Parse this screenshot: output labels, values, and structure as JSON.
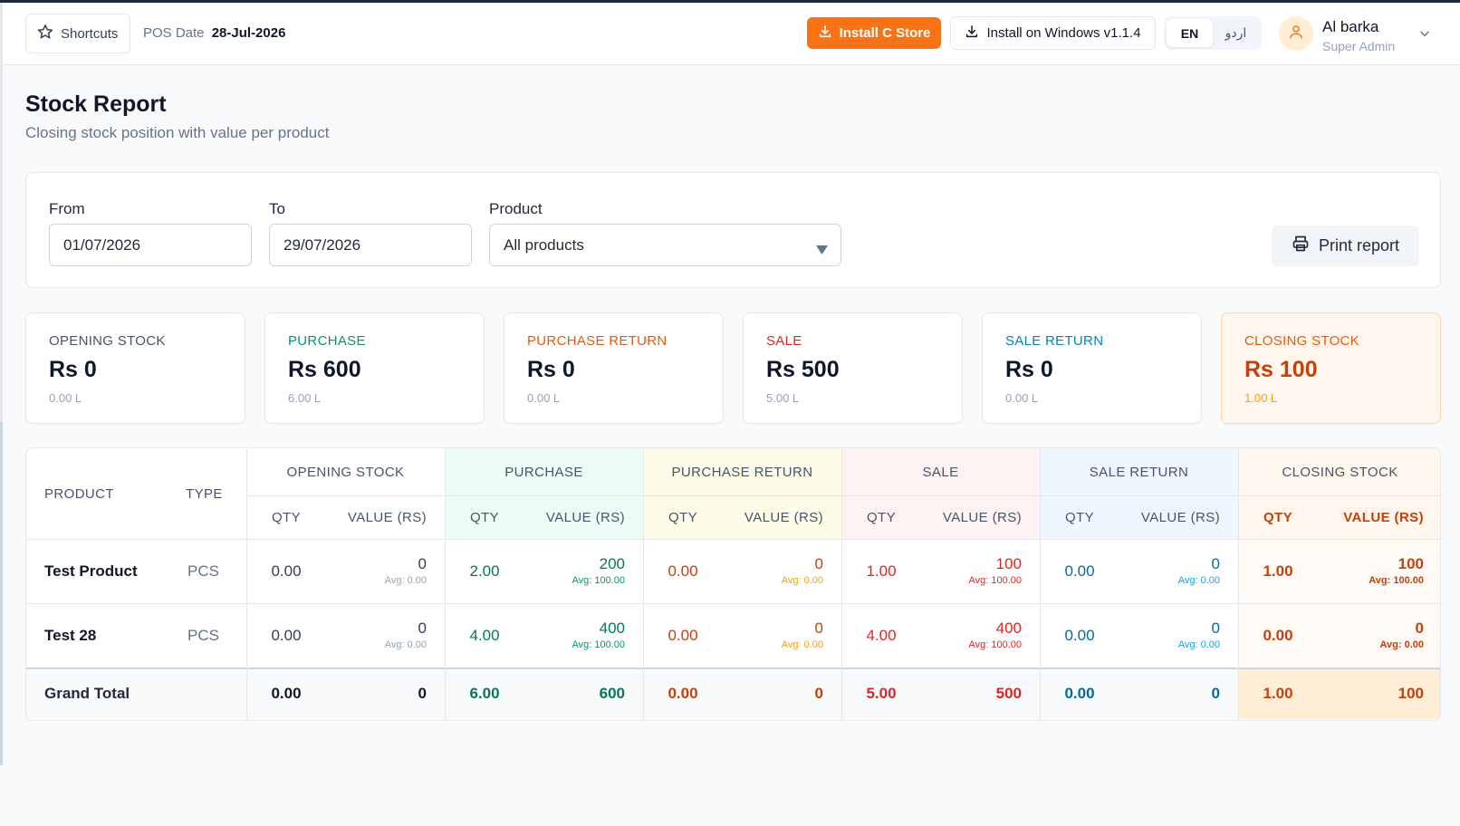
{
  "header": {
    "shortcuts_label": "Shortcuts",
    "pos_date_label": "POS Date",
    "pos_date_value": "28-Jul-2026",
    "install_store_label": "Install C Store",
    "install_windows_label": "Install on Windows v1.1.4",
    "languages": [
      "EN",
      "اردو"
    ],
    "active_language": "EN",
    "user": {
      "name": "Al barka",
      "role": "Super Admin"
    }
  },
  "page": {
    "title": "Stock Report",
    "subtitle": "Closing stock position with value per product"
  },
  "filters": {
    "from_label": "From",
    "from_value": "01/07/2026",
    "to_label": "To",
    "to_value": "29/07/2026",
    "product_label": "Product",
    "product_value": "All products",
    "print_label": "Print report"
  },
  "summary": [
    {
      "title": "OPENING STOCK",
      "value": "Rs 0",
      "sub": "0.00 L",
      "color": "#475569"
    },
    {
      "title": "PURCHASE",
      "value": "Rs 600",
      "sub": "6.00 L",
      "color": "#059669"
    },
    {
      "title": "PURCHASE RETURN",
      "value": "Rs 0",
      "sub": "0.00 L",
      "color": "#ea580c"
    },
    {
      "title": "SALE",
      "value": "Rs 500",
      "sub": "5.00 L",
      "color": "#dc2626"
    },
    {
      "title": "SALE RETURN",
      "value": "Rs 0",
      "sub": "0.00 L",
      "color": "#0284c7"
    },
    {
      "title": "CLOSING STOCK",
      "value": "Rs 100",
      "sub": "1.00 L",
      "color": "#ea580c"
    }
  ],
  "table": {
    "product_header": "PRODUCT",
    "type_header": "TYPE",
    "qty_header": "QTY",
    "value_header": "VALUE (RS)",
    "groups": [
      "OPENING STOCK",
      "PURCHASE",
      "PURCHASE RETURN",
      "SALE",
      "SALE RETURN",
      "CLOSING STOCK"
    ],
    "rows": [
      {
        "product": "Test Product",
        "type": "PCS",
        "cells": [
          {
            "qty": "0.00",
            "value": "0",
            "avg": "Avg: 0.00"
          },
          {
            "qty": "2.00",
            "value": "200",
            "avg": "Avg: 100.00"
          },
          {
            "qty": "0.00",
            "value": "0",
            "avg": "Avg: 0.00"
          },
          {
            "qty": "1.00",
            "value": "100",
            "avg": "Avg: 100.00"
          },
          {
            "qty": "0.00",
            "value": "0",
            "avg": "Avg: 0.00"
          },
          {
            "qty": "1.00",
            "value": "100",
            "avg": "Avg: 100.00"
          }
        ]
      },
      {
        "product": "Test 28",
        "type": "PCS",
        "cells": [
          {
            "qty": "0.00",
            "value": "0",
            "avg": "Avg: 0.00"
          },
          {
            "qty": "4.00",
            "value": "400",
            "avg": "Avg: 100.00"
          },
          {
            "qty": "0.00",
            "value": "0",
            "avg": "Avg: 0.00"
          },
          {
            "qty": "4.00",
            "value": "400",
            "avg": "Avg: 100.00"
          },
          {
            "qty": "0.00",
            "value": "0",
            "avg": "Avg: 0.00"
          },
          {
            "qty": "0.00",
            "value": "0",
            "avg": "Avg: 0.00"
          }
        ]
      }
    ],
    "total": {
      "label": "Grand Total",
      "cells": [
        {
          "qty": "0.00",
          "value": "0"
        },
        {
          "qty": "6.00",
          "value": "600"
        },
        {
          "qty": "0.00",
          "value": "0"
        },
        {
          "qty": "5.00",
          "value": "500"
        },
        {
          "qty": "0.00",
          "value": "0"
        },
        {
          "qty": "1.00",
          "value": "100"
        }
      ]
    }
  },
  "colors": {
    "accent": "#f97316",
    "opening": "#334155",
    "purchase": "#047857",
    "purchase_return": "#c2410c",
    "sale": "#dc2626",
    "sale_return": "#0369a1",
    "closing": "#c2410c"
  }
}
